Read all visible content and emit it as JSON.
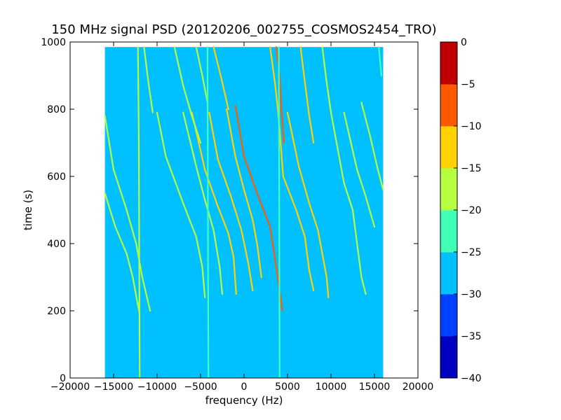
{
  "chart_data": {
    "type": "heatmap",
    "title": "150 MHz signal PSD (20120206_002755_COSMOS2454_TRO)",
    "xlabel": "frequency (Hz)",
    "ylabel": "time (s)",
    "xlim": [
      -20000,
      20000
    ],
    "ylim": [
      0,
      1000
    ],
    "x_ticks": [
      "−20000",
      "−15000",
      "−10000",
      "−5000",
      "0",
      "5000",
      "10000",
      "15000",
      "20000"
    ],
    "y_ticks": [
      "0",
      "200",
      "400",
      "600",
      "800",
      "1000"
    ],
    "data_extent": {
      "x": [
        -16000,
        16000
      ],
      "y": [
        0,
        985
      ]
    },
    "background_level": -28,
    "grid": false,
    "colorbar": {
      "ticks": [
        "0",
        "−5",
        "−10",
        "−15",
        "−20",
        "−25",
        "−30",
        "−35",
        "−40"
      ],
      "levels": [
        -40,
        -35,
        -30,
        -25,
        -20,
        -15,
        -10,
        -5,
        0
      ],
      "colors": [
        "#0000c0",
        "#0040ff",
        "#00c0ff",
        "#40ffb6",
        "#b6ff40",
        "#ffd200",
        "#ff5a00",
        "#c00000"
      ]
    },
    "traces": [
      {
        "level": -8,
        "points": [
          [
            -1000,
            810
          ],
          [
            0,
            660
          ],
          [
            1500,
            550
          ],
          [
            3000,
            450
          ],
          [
            3700,
            330
          ],
          [
            4100,
            260
          ],
          [
            4400,
            200
          ]
        ]
      },
      {
        "level": -9,
        "points": [
          [
            3700,
            985
          ],
          [
            4100,
            900
          ],
          [
            4300,
            800
          ],
          [
            4600,
            700
          ]
        ]
      },
      {
        "level": -14,
        "points": [
          [
            -6000,
            790
          ],
          [
            -4500,
            620
          ],
          [
            -3000,
            510
          ],
          [
            -1800,
            430
          ],
          [
            -1200,
            360
          ],
          [
            -900,
            250
          ]
        ]
      },
      {
        "level": -14,
        "points": [
          [
            -2000,
            800
          ],
          [
            -1000,
            660
          ],
          [
            0,
            560
          ],
          [
            1000,
            470
          ],
          [
            1500,
            400
          ],
          [
            2000,
            300
          ]
        ]
      },
      {
        "level": -15,
        "points": [
          [
            -4000,
            790
          ],
          [
            -3000,
            650
          ],
          [
            -1500,
            540
          ],
          [
            -300,
            440
          ],
          [
            500,
            340
          ],
          [
            1000,
            260
          ]
        ]
      },
      {
        "level": -14,
        "points": [
          [
            -3500,
            985
          ],
          [
            -2500,
            880
          ],
          [
            -1800,
            800
          ]
        ]
      },
      {
        "level": -14,
        "points": [
          [
            6500,
            985
          ],
          [
            7000,
            880
          ],
          [
            7500,
            780
          ],
          [
            8000,
            700
          ]
        ]
      },
      {
        "level": -15,
        "points": [
          [
            3000,
            985
          ],
          [
            3600,
            870
          ],
          [
            4000,
            770
          ],
          [
            4500,
            600
          ],
          [
            6000,
            500
          ],
          [
            7000,
            420
          ],
          [
            7500,
            320
          ],
          [
            8000,
            260
          ]
        ]
      },
      {
        "level": -15,
        "points": [
          [
            5000,
            790
          ],
          [
            6300,
            630
          ],
          [
            7500,
            520
          ],
          [
            8500,
            440
          ],
          [
            9500,
            300
          ],
          [
            9700,
            240
          ]
        ]
      },
      {
        "level": -16,
        "points": [
          [
            9000,
            985
          ],
          [
            9500,
            880
          ],
          [
            10000,
            790
          ],
          [
            11500,
            580
          ],
          [
            12500,
            500
          ],
          [
            13000,
            400
          ],
          [
            13500,
            300
          ],
          [
            14000,
            250
          ]
        ]
      },
      {
        "level": -17,
        "points": [
          [
            -16000,
            550
          ],
          [
            -14800,
            450
          ],
          [
            -13500,
            370
          ],
          [
            -12800,
            300
          ],
          [
            -12300,
            230
          ],
          [
            -12000,
            190
          ]
        ]
      },
      {
        "level": -17,
        "points": [
          [
            -16000,
            780
          ],
          [
            -15000,
            620
          ],
          [
            -13500,
            500
          ],
          [
            -12400,
            400
          ],
          [
            -11700,
            300
          ],
          [
            -10800,
            200
          ]
        ]
      },
      {
        "level": -19,
        "points": [
          [
            -11500,
            985
          ],
          [
            -11000,
            880
          ],
          [
            -10500,
            790
          ]
        ]
      },
      {
        "level": -19,
        "points": [
          [
            -8000,
            985
          ],
          [
            -7000,
            870
          ],
          [
            -6000,
            780
          ],
          [
            -5000,
            700
          ]
        ]
      },
      {
        "level": -19,
        "points": [
          [
            -7000,
            790
          ],
          [
            -5500,
            630
          ],
          [
            -4500,
            530
          ],
          [
            -3500,
            440
          ],
          [
            -2800,
            330
          ],
          [
            -2500,
            250
          ]
        ]
      },
      {
        "level": -19,
        "points": [
          [
            -10000,
            790
          ],
          [
            -9000,
            660
          ],
          [
            -7000,
            520
          ],
          [
            -5500,
            420
          ],
          [
            -4800,
            330
          ],
          [
            -4500,
            240
          ]
        ]
      },
      {
        "level": -19,
        "points": [
          [
            11500,
            790
          ],
          [
            13000,
            620
          ],
          [
            14000,
            540
          ],
          [
            15000,
            450
          ]
        ]
      },
      {
        "level": -18,
        "points": [
          [
            13500,
            820
          ],
          [
            14500,
            720
          ],
          [
            15300,
            630
          ],
          [
            16000,
            560
          ]
        ]
      },
      {
        "level": -20,
        "points": [
          [
            -5500,
            985
          ],
          [
            -4800,
            900
          ],
          [
            -4200,
            820
          ]
        ]
      },
      {
        "level": -21,
        "points": [
          [
            15500,
            985
          ],
          [
            15800,
            900
          ]
        ]
      },
      {
        "level": -20,
        "points": [
          [
            -12200,
            985
          ],
          [
            -12100,
            700
          ],
          [
            -12000,
            0
          ]
        ]
      },
      {
        "level": -22,
        "points": [
          [
            4000,
            985
          ],
          [
            4050,
            500
          ],
          [
            4100,
            0
          ]
        ]
      },
      {
        "level": -23,
        "points": [
          [
            -4200,
            985
          ],
          [
            -4150,
            500
          ],
          [
            -4100,
            0
          ]
        ]
      }
    ]
  }
}
